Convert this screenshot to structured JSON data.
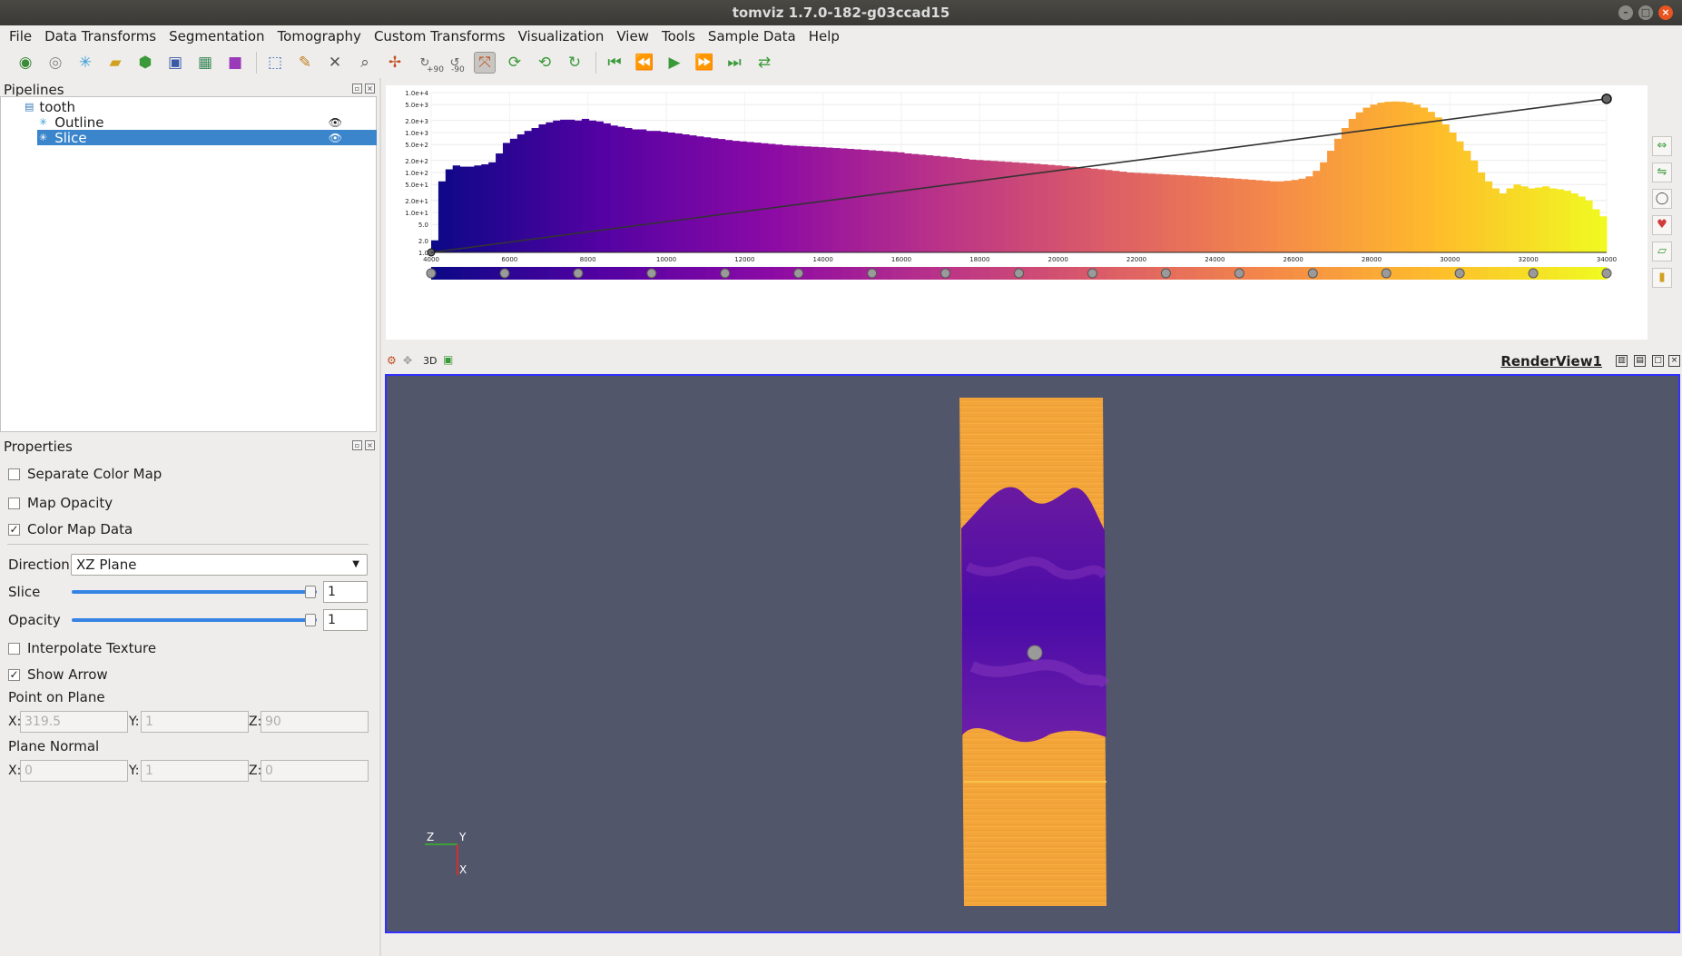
{
  "window": {
    "title": "tomviz 1.7.0-182-g03ccad15"
  },
  "menu": [
    "File",
    "Data Transforms",
    "Segmentation",
    "Tomography",
    "Custom Transforms",
    "Visualization",
    "View",
    "Tools",
    "Sample Data",
    "Help"
  ],
  "toolbar": {
    "icons": [
      "data-source-icon",
      "reset-icon",
      "snowflake-icon",
      "ruler-icon",
      "module-icon",
      "box-icon",
      "box-split-icon",
      "cube-icon",
      "pick-icon",
      "palette-icon",
      "fit-icon",
      "zoom-icon",
      "axis-icon",
      "rotate-plus-icon",
      "rotate-minus-icon",
      "interact-icon",
      "reset-cam-icon",
      "rotate-cam-icon",
      "refresh-icon",
      "first-frame-icon",
      "prev-frame-icon",
      "play-icon",
      "next-frame-icon",
      "last-frame-icon",
      "loop-icon"
    ],
    "rotate_plus_label": "+90",
    "rotate_minus_label": "-90"
  },
  "pipelines": {
    "title": "Pipelines",
    "root": "tooth",
    "items": [
      {
        "label": "Outline",
        "selected": false
      },
      {
        "label": "Slice",
        "selected": true
      }
    ]
  },
  "properties": {
    "title": "Properties",
    "separate_color_map": {
      "label": "Separate Color Map",
      "checked": false
    },
    "map_opacity": {
      "label": "Map Opacity",
      "checked": false
    },
    "color_map_data": {
      "label": "Color Map Data",
      "checked": true
    },
    "direction": {
      "label": "Direction",
      "value": "XZ Plane"
    },
    "slice": {
      "label": "Slice",
      "value": "1",
      "fraction": 1.0
    },
    "opacity": {
      "label": "Opacity",
      "value": "1",
      "fraction": 1.0
    },
    "interpolate_texture": {
      "label": "Interpolate Texture",
      "checked": false
    },
    "show_arrow": {
      "label": "Show Arrow",
      "checked": true
    },
    "point_on_plane": {
      "label": "Point on Plane",
      "x": "319.5",
      "y": "1",
      "z": "90"
    },
    "plane_normal": {
      "label": "Plane Normal",
      "x": "0",
      "y": "1",
      "z": "0"
    },
    "x_label": "X:",
    "y_label": "Y:",
    "z_label": "Z:"
  },
  "chart_data": {
    "type": "bar",
    "title": "",
    "xlabel": "",
    "ylabel": "",
    "xlim": [
      4000,
      34000
    ],
    "yscale": "log",
    "ylim": [
      1,
      10000
    ],
    "x_ticks": [
      "4000",
      "6000",
      "8000",
      "10000",
      "12000",
      "14000",
      "16000",
      "18000",
      "20000",
      "22000",
      "24000",
      "26000",
      "28000",
      "30000",
      "32000",
      "34000"
    ],
    "y_ticks": [
      "1.0e+4",
      "5.0e+3",
      "2.0e+3",
      "1.0e+3",
      "5.0e+2",
      "2.0e+2",
      "1.0e+2",
      "5.0e+1",
      "2.0e+1",
      "1.0e+1",
      "5.0",
      "2.0",
      "1.0"
    ],
    "bin_start": 4000,
    "bin_end": 34000,
    "counts": [
      2,
      60,
      120,
      150,
      140,
      140,
      150,
      160,
      180,
      300,
      550,
      700,
      900,
      1100,
      1300,
      1600,
      1800,
      2000,
      2100,
      2100,
      2000,
      2200,
      2000,
      1900,
      1700,
      1500,
      1400,
      1300,
      1200,
      1200,
      1100,
      1100,
      1050,
      1000,
      950,
      900,
      850,
      800,
      760,
      720,
      690,
      650,
      620,
      600,
      580,
      560,
      540,
      520,
      500,
      480,
      470,
      460,
      450,
      440,
      430,
      420,
      410,
      400,
      390,
      380,
      370,
      360,
      350,
      340,
      330,
      320,
      300,
      290,
      280,
      270,
      260,
      250,
      240,
      230,
      220,
      210,
      205,
      200,
      195,
      190,
      185,
      180,
      175,
      170,
      165,
      160,
      155,
      150,
      145,
      140,
      135,
      130,
      125,
      120,
      115,
      110,
      105,
      100,
      98,
      96,
      94,
      92,
      90,
      88,
      86,
      84,
      82,
      80,
      78,
      76,
      74,
      72,
      70,
      68,
      66,
      64,
      62,
      60,
      60,
      62,
      65,
      70,
      80,
      110,
      180,
      350,
      700,
      1300,
      2200,
      3200,
      4200,
      5000,
      5600,
      5900,
      6000,
      5900,
      5600,
      5000,
      4200,
      3300,
      2400,
      1600,
      1000,
      600,
      350,
      200,
      100,
      60,
      40,
      30,
      40,
      50,
      45,
      40,
      42,
      45,
      40,
      38,
      35,
      30,
      25,
      20,
      12,
      8
    ],
    "line": {
      "x": [
        4000,
        34000
      ],
      "y": [
        1,
        7000
      ]
    },
    "colormap": "plasma",
    "colormap_nodes": 17
  },
  "render": {
    "view_label": "3D",
    "view_name": "RenderView1",
    "axes": {
      "z": "Z",
      "y": "Y",
      "x": "X"
    },
    "colors": {
      "background": "#52566b",
      "border": "#3030ff"
    }
  }
}
